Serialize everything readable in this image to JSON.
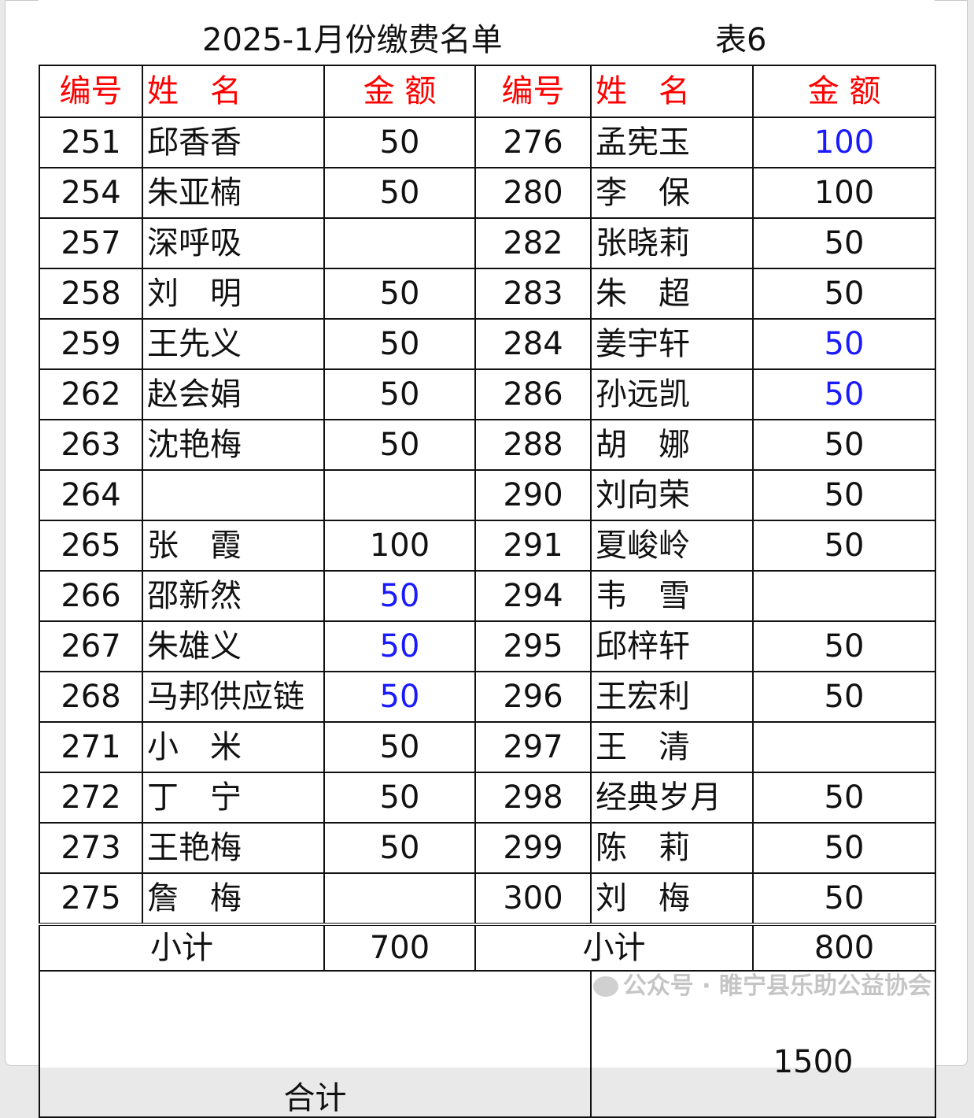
{
  "title": "2025-1月份缴费名单",
  "sheet_no": "表6",
  "headers": [
    "编号",
    "姓　名",
    "金 额",
    "编号",
    "姓　名",
    "金 额"
  ],
  "colors": {
    "header": "#ff0000",
    "highlight": "#1a1aff",
    "text": "#111111"
  },
  "rows": [
    {
      "l_no": "251",
      "l_name": "邱香香",
      "l_amt": "50",
      "l_hl": false,
      "r_no": "276",
      "r_name": "孟宪玉",
      "r_amt": "100",
      "r_hl": true
    },
    {
      "l_no": "254",
      "l_name": "朱亚楠",
      "l_amt": "50",
      "l_hl": false,
      "r_no": "280",
      "r_name": "李　保",
      "r_amt": "100",
      "r_hl": false
    },
    {
      "l_no": "257",
      "l_name": "深呼吸",
      "l_amt": "",
      "l_hl": false,
      "r_no": "282",
      "r_name": "张晓莉",
      "r_amt": "50",
      "r_hl": false
    },
    {
      "l_no": "258",
      "l_name": "刘　明",
      "l_amt": "50",
      "l_hl": false,
      "r_no": "283",
      "r_name": "朱　超",
      "r_amt": "50",
      "r_hl": false
    },
    {
      "l_no": "259",
      "l_name": "王先义",
      "l_amt": "50",
      "l_hl": false,
      "r_no": "284",
      "r_name": "姜宇轩",
      "r_amt": "50",
      "r_hl": true
    },
    {
      "l_no": "262",
      "l_name": "赵会娟",
      "l_amt": "50",
      "l_hl": false,
      "r_no": "286",
      "r_name": "孙远凯",
      "r_amt": "50",
      "r_hl": true
    },
    {
      "l_no": "263",
      "l_name": "沈艳梅",
      "l_amt": "50",
      "l_hl": false,
      "r_no": "288",
      "r_name": "胡　娜",
      "r_amt": "50",
      "r_hl": false
    },
    {
      "l_no": "264",
      "l_name": "",
      "l_amt": "",
      "l_hl": false,
      "r_no": "290",
      "r_name": "刘向荣",
      "r_amt": "50",
      "r_hl": false
    },
    {
      "l_no": "265",
      "l_name": "张　霞",
      "l_amt": "100",
      "l_hl": false,
      "r_no": "291",
      "r_name": "夏峻岭",
      "r_amt": "50",
      "r_hl": false
    },
    {
      "l_no": "266",
      "l_name": "邵新然",
      "l_amt": "50",
      "l_hl": true,
      "r_no": "294",
      "r_name": "韦　雪",
      "r_amt": "",
      "r_hl": false
    },
    {
      "l_no": "267",
      "l_name": "朱雄义",
      "l_amt": "50",
      "l_hl": true,
      "r_no": "295",
      "r_name": "邱梓轩",
      "r_amt": "50",
      "r_hl": false
    },
    {
      "l_no": "268",
      "l_name": "马邦供应链",
      "l_amt": "50",
      "l_hl": true,
      "r_no": "296",
      "r_name": "王宏利",
      "r_amt": "50",
      "r_hl": false
    },
    {
      "l_no": "271",
      "l_name": "小　米",
      "l_amt": "50",
      "l_hl": false,
      "r_no": "297",
      "r_name": "王　清",
      "r_amt": "",
      "r_hl": false
    },
    {
      "l_no": "272",
      "l_name": "丁　宁",
      "l_amt": "50",
      "l_hl": false,
      "r_no": "298",
      "r_name": "经典岁月",
      "r_amt": "50",
      "r_hl": false
    },
    {
      "l_no": "273",
      "l_name": "王艳梅",
      "l_amt": "50",
      "l_hl": false,
      "r_no": "299",
      "r_name": "陈　莉",
      "r_amt": "50",
      "r_hl": false
    },
    {
      "l_no": "275",
      "l_name": "詹　梅",
      "l_amt": "",
      "l_hl": false,
      "r_no": "300",
      "r_name": "刘　梅",
      "r_amt": "50",
      "r_hl": false
    }
  ],
  "subtotal": {
    "label": "小计",
    "left": "700",
    "right": "800"
  },
  "total": {
    "label": "合计",
    "value": "1500"
  },
  "watermark": "公众号 · 睢宁县乐助公益协会"
}
